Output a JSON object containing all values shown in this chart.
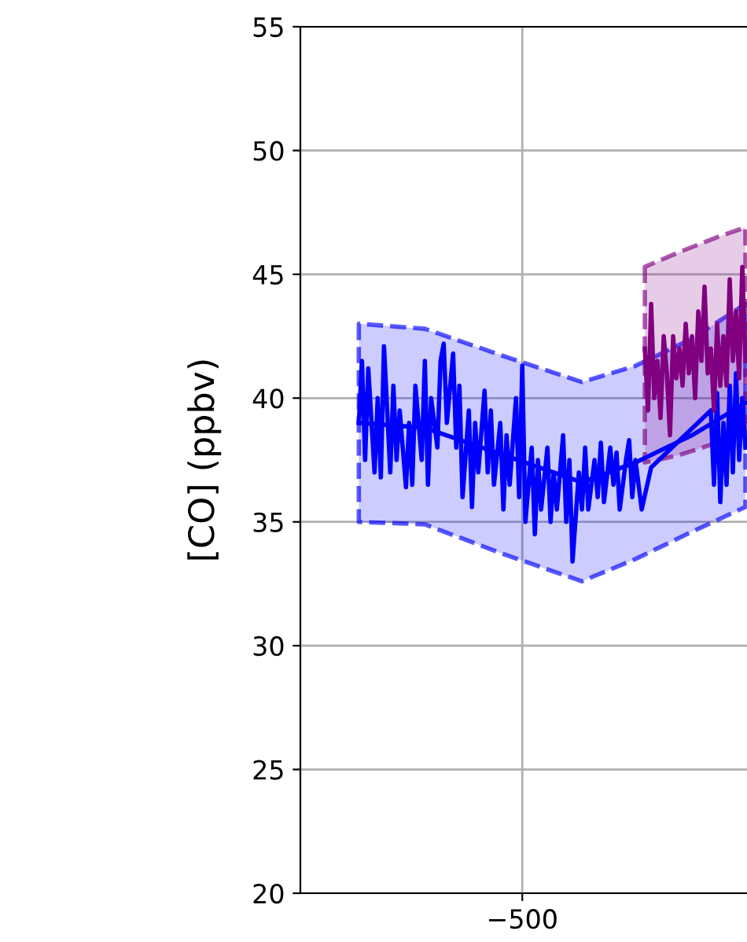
{
  "chart_data": {
    "type": "line",
    "ylabel": "[CO] (ppbv)",
    "ylim": [
      20,
      55
    ],
    "yticks": [
      20,
      25,
      30,
      35,
      40,
      45,
      50,
      55
    ],
    "grid": true,
    "marker": "none",
    "categories": [
      null,
      null,
      null,
      null,
      null,
      null,
      null,
      null,
      null,
      null,
      null,
      null,
      null,
      null,
      null,
      null,
      null,
      null,
      null,
      null,
      null,
      null,
      null,
      null,
      null,
      null,
      null,
      null,
      null,
      null,
      null,
      null,
      null,
      null,
      null,
      null,
      null,
      null,
      null,
      null,
      null,
      null,
      null,
      null,
      null,
      null,
      null,
      null,
      null,
      null,
      null,
      null,
      "−500",
      null,
      null,
      null,
      null,
      null,
      null,
      null,
      null,
      null,
      null,
      null,
      null,
      null,
      null,
      null,
      null,
      null,
      null,
      null,
      null,
      null,
      null,
      null,
      null,
      null,
      null,
      null,
      null,
      null,
      null,
      null,
      null,
      null,
      null,
      null,
      null,
      null,
      null,
      null,
      null,
      null,
      null,
      null,
      null,
      null,
      null,
      null,
      null,
      null,
      null,
      null,
      null,
      null,
      null,
      null,
      null,
      null,
      null,
      null,
      null,
      null,
      null,
      null,
      null,
      null,
      null,
      null,
      null,
      null,
      null,
      null
    ],
    "series": [
      {
        "color": "#0000ff",
        "values": [
          39,
          null,
          null,
          null,
          null,
          null,
          null,
          null,
          null,
          null,
          null,
          null,
          null,
          null,
          null,
          null,
          null,
          null,
          null,
          null,
          null,
          38.8,
          null,
          null,
          null,
          null,
          null,
          null,
          null,
          null,
          null,
          null,
          null,
          null,
          null,
          null,
          null,
          null,
          null,
          null,
          null,
          null,
          null,
          null,
          null,
          null,
          37.7,
          null,
          null,
          null,
          null,
          null,
          null,
          null,
          null,
          null,
          null,
          null,
          null,
          null,
          null,
          null,
          null,
          null,
          null,
          null,
          null,
          null,
          null,
          null,
          null,
          36.6,
          null,
          null,
          null,
          null,
          null,
          null,
          null,
          null,
          null,
          null,
          null,
          null,
          null,
          null,
          null,
          null,
          37.4,
          null,
          null,
          null,
          null,
          null,
          null,
          null,
          null,
          null,
          null,
          null,
          null,
          null,
          null,
          null,
          null,
          null,
          38.5,
          null,
          null,
          null,
          null,
          null,
          null,
          null,
          null,
          null,
          null,
          null,
          null,
          null,
          null,
          null,
          null,
          39.8
        ],
        "lower": [
          35,
          null,
          null,
          null,
          null,
          null,
          null,
          null,
          null,
          null,
          null,
          null,
          null,
          null,
          null,
          null,
          null,
          null,
          null,
          null,
          null,
          34.9,
          null,
          null,
          null,
          null,
          null,
          null,
          null,
          null,
          null,
          null,
          null,
          null,
          null,
          null,
          null,
          null,
          null,
          null,
          null,
          null,
          null,
          null,
          null,
          null,
          33.7,
          null,
          null,
          null,
          null,
          null,
          null,
          null,
          null,
          null,
          null,
          null,
          null,
          null,
          null,
          null,
          null,
          null,
          null,
          null,
          null,
          null,
          null,
          null,
          null,
          32.6,
          null,
          null,
          null,
          null,
          null,
          null,
          null,
          null,
          null,
          null,
          null,
          null,
          null,
          null,
          null,
          null,
          33.5,
          null,
          null,
          null,
          null,
          null,
          null,
          null,
          null,
          null,
          null,
          null,
          null,
          null,
          null,
          null,
          null,
          null,
          34.6,
          null,
          null,
          null,
          null,
          null,
          null,
          null,
          null,
          null,
          null,
          null,
          null,
          null,
          null,
          null,
          null,
          35.6
        ],
        "upper": [
          43,
          null,
          null,
          null,
          null,
          null,
          null,
          null,
          null,
          null,
          null,
          null,
          null,
          null,
          null,
          null,
          null,
          null,
          null,
          null,
          null,
          42.8,
          null,
          null,
          null,
          null,
          null,
          null,
          null,
          null,
          null,
          null,
          null,
          null,
          null,
          null,
          null,
          null,
          null,
          null,
          null,
          null,
          null,
          null,
          null,
          null,
          41.7,
          null,
          null,
          null,
          null,
          null,
          null,
          null,
          null,
          null,
          null,
          null,
          null,
          null,
          null,
          null,
          null,
          null,
          null,
          null,
          null,
          null,
          null,
          null,
          null,
          40.65,
          null,
          null,
          null,
          null,
          null,
          null,
          null,
          null,
          null,
          null,
          null,
          null,
          null,
          null,
          null,
          null,
          41.3,
          null,
          null,
          null,
          null,
          null,
          null,
          null,
          null,
          null,
          null,
          null,
          null,
          null,
          null,
          null,
          null,
          null,
          42.4,
          null,
          null,
          null,
          null,
          null,
          null,
          null,
          null,
          null,
          null,
          null,
          null,
          null,
          null,
          null,
          null,
          43.8
        ]
      },
      {
        "color": "#0000ff",
        "values": [
          39,
          41.5,
          37.5,
          41.2,
          null,
          37,
          40,
          36.8,
          42.1,
          null,
          37,
          40.5,
          37.5,
          39.5,
          null,
          36.4,
          39,
          36.5,
          40.5,
          null,
          37.5,
          41.5,
          36.5,
          40,
          null,
          38,
          41.5,
          42.2,
          39,
          null,
          41.8,
          38,
          40.5,
          36,
          null,
          39.5,
          35.6,
          39,
          37,
          null,
          40.3,
          37,
          39.5,
          36.5,
          null,
          39,
          35.5,
          38.5,
          36.5,
          null,
          40,
          36,
          41.3,
          35,
          null,
          38,
          34.5,
          37.5,
          35.5,
          null,
          38,
          35,
          37,
          35.5,
          null,
          38.5,
          35,
          37.5,
          33.4,
          null,
          37,
          35.5,
          38,
          35.5,
          null,
          37.5,
          36,
          38.2,
          35.8,
          null,
          38,
          36.5,
          37.8,
          35.5,
          null,
          37.5,
          38.3,
          36,
          37.5,
          null,
          35.5,
          null,
          null,
          37.2,
          null,
          null,
          null,
          null,
          null,
          null,
          null,
          null,
          null,
          null,
          null,
          null,
          null,
          null,
          null,
          null,
          null,
          null,
          39.5,
          36.5,
          40.2,
          35.8,
          39,
          36.5,
          40.5,
          37,
          41,
          37.5,
          40,
          38
        ]
      },
      {
        "color": "#800080",
        "values": [
          null,
          null,
          null,
          null,
          null,
          null,
          null,
          null,
          null,
          null,
          null,
          null,
          null,
          null,
          null,
          null,
          null,
          null,
          null,
          null,
          null,
          null,
          null,
          null,
          null,
          null,
          null,
          null,
          null,
          null,
          null,
          null,
          null,
          null,
          null,
          null,
          null,
          null,
          null,
          null,
          null,
          null,
          null,
          null,
          null,
          null,
          null,
          null,
          null,
          null,
          null,
          null,
          null,
          null,
          null,
          null,
          null,
          null,
          null,
          null,
          null,
          null,
          null,
          null,
          null,
          null,
          null,
          null,
          null,
          null,
          null,
          null,
          null,
          null,
          null,
          null,
          null,
          null,
          null,
          null,
          null,
          null,
          null,
          null,
          null,
          null,
          null,
          null,
          null,
          null,
          null,
          42,
          39.5,
          43.8,
          40,
          41.5,
          39.2,
          42.5,
          41,
          38.5,
          42.5,
          40.8,
          42,
          40.5,
          43,
          41,
          42.5,
          40,
          43.5,
          41.5,
          44.5,
          41,
          42,
          39.5,
          43,
          40.5,
          42.5,
          40.5,
          44.8,
          41.5,
          43.5,
          40.8,
          45.3,
          41.5
        ],
        "lower": [
          null,
          null,
          null,
          null,
          null,
          null,
          null,
          null,
          null,
          null,
          null,
          null,
          null,
          null,
          null,
          null,
          null,
          null,
          null,
          null,
          null,
          null,
          null,
          null,
          null,
          null,
          null,
          null,
          null,
          null,
          null,
          null,
          null,
          null,
          null,
          null,
          null,
          null,
          null,
          null,
          null,
          null,
          null,
          null,
          null,
          null,
          null,
          null,
          null,
          null,
          null,
          null,
          null,
          null,
          null,
          null,
          null,
          null,
          null,
          null,
          null,
          null,
          null,
          null,
          null,
          null,
          null,
          null,
          null,
          null,
          null,
          null,
          null,
          null,
          null,
          null,
          null,
          null,
          null,
          null,
          null,
          null,
          null,
          null,
          null,
          null,
          null,
          null,
          null,
          null,
          null,
          37.4,
          null,
          null,
          null,
          null,
          null,
          null,
          null,
          null,
          null,
          null,
          37.7,
          null,
          null,
          null,
          null,
          null,
          null,
          null,
          null,
          null,
          null,
          null,
          38.2,
          null,
          null,
          null,
          null,
          null,
          null,
          null,
          null,
          38.7
        ],
        "upper": [
          null,
          null,
          null,
          null,
          null,
          null,
          null,
          null,
          null,
          null,
          null,
          null,
          null,
          null,
          null,
          null,
          null,
          null,
          null,
          null,
          null,
          null,
          null,
          null,
          null,
          null,
          null,
          null,
          null,
          null,
          null,
          null,
          null,
          null,
          null,
          null,
          null,
          null,
          null,
          null,
          null,
          null,
          null,
          null,
          null,
          null,
          null,
          null,
          null,
          null,
          null,
          null,
          null,
          null,
          null,
          null,
          null,
          null,
          null,
          null,
          null,
          null,
          null,
          null,
          null,
          null,
          null,
          null,
          null,
          null,
          null,
          null,
          null,
          null,
          null,
          null,
          null,
          null,
          null,
          null,
          null,
          null,
          null,
          null,
          null,
          null,
          null,
          null,
          null,
          null,
          null,
          45.3,
          null,
          null,
          null,
          null,
          null,
          null,
          null,
          null,
          null,
          null,
          45.9,
          null,
          null,
          null,
          null,
          null,
          null,
          null,
          null,
          null,
          null,
          null,
          46.5,
          null,
          null,
          null,
          null,
          null,
          null,
          null,
          null,
          46.9
        ]
      }
    ]
  }
}
